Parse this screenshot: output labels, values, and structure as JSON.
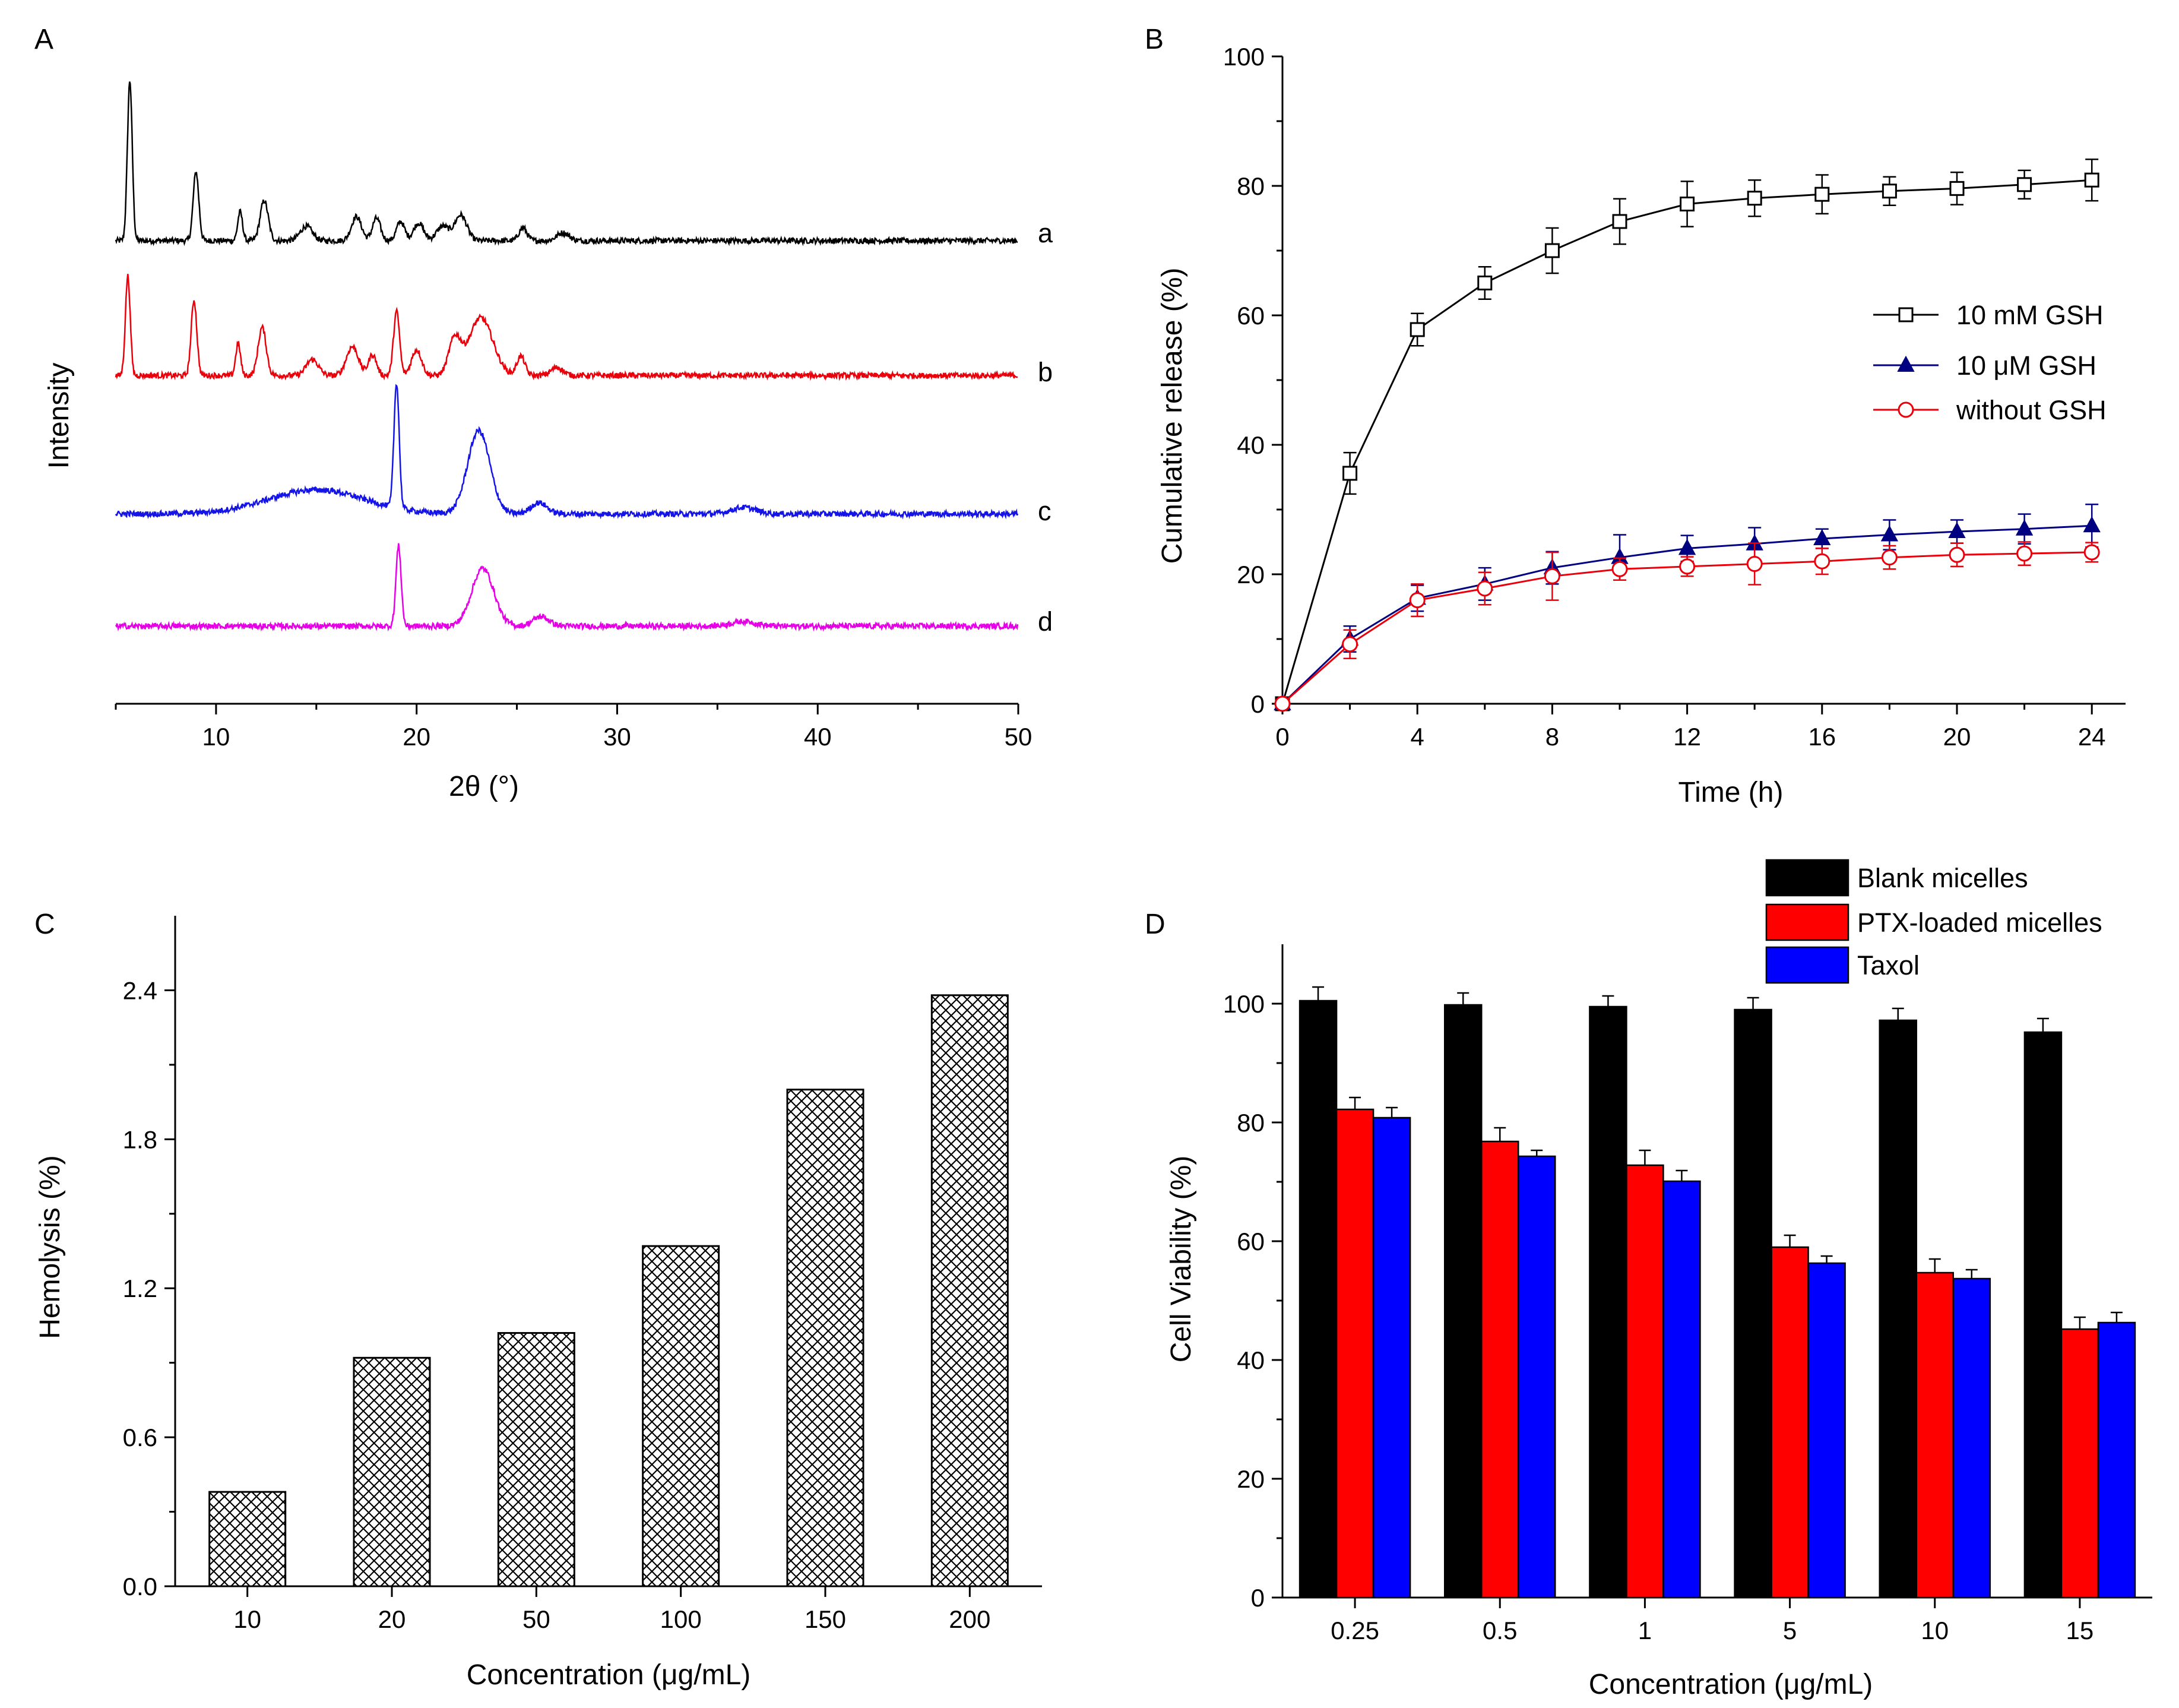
{
  "chart_data": [
    {
      "panel": "A",
      "type": "line",
      "title": "",
      "xlabel": "2θ (°)",
      "ylabel": "Intensity",
      "xlim": [
        5,
        50
      ],
      "xticks": [
        10,
        20,
        30,
        40,
        50
      ],
      "series": [
        {
          "name": "a",
          "color": "#000000",
          "baseline": 0.0,
          "peaks": [
            [
              5.7,
              1.0,
              0.12
            ],
            [
              9.0,
              0.43,
              0.14
            ],
            [
              11.2,
              0.18,
              0.12
            ],
            [
              12.4,
              0.25,
              0.2
            ],
            [
              14.5,
              0.09,
              0.3
            ],
            [
              17.0,
              0.15,
              0.25
            ],
            [
              18.0,
              0.14,
              0.2
            ],
            [
              19.2,
              0.12,
              0.2
            ],
            [
              20.1,
              0.11,
              0.25
            ],
            [
              21.3,
              0.09,
              0.3
            ],
            [
              22.2,
              0.16,
              0.3
            ],
            [
              25.3,
              0.08,
              0.2
            ],
            [
              27.3,
              0.05,
              0.3
            ]
          ]
        },
        {
          "name": "b",
          "color": "#e8000b",
          "baseline": 0.0,
          "peaks": [
            [
              5.6,
              0.62,
              0.12
            ],
            [
              8.9,
              0.47,
              0.14
            ],
            [
              11.1,
              0.2,
              0.12
            ],
            [
              12.3,
              0.3,
              0.2
            ],
            [
              14.8,
              0.1,
              0.3
            ],
            [
              16.8,
              0.18,
              0.3
            ],
            [
              17.8,
              0.13,
              0.2
            ],
            [
              19.0,
              0.4,
              0.15
            ],
            [
              20.0,
              0.16,
              0.25
            ],
            [
              21.9,
              0.22,
              0.3
            ],
            [
              23.2,
              0.36,
              0.6
            ],
            [
              25.2,
              0.12,
              0.2
            ],
            [
              27.0,
              0.05,
              0.3
            ]
          ]
        },
        {
          "name": "c",
          "color": "#1414e6",
          "baseline": 0.0,
          "peaks": [
            [
              15.0,
              0.15,
              2.4
            ],
            [
              19.0,
              0.78,
              0.13
            ],
            [
              23.1,
              0.52,
              0.55
            ],
            [
              26.1,
              0.07,
              0.4
            ],
            [
              36.3,
              0.04,
              0.6
            ]
          ]
        },
        {
          "name": "d",
          "color": "#e600e6",
          "baseline": 0.0,
          "peaks": [
            [
              19.1,
              0.5,
              0.13
            ],
            [
              23.3,
              0.36,
              0.55
            ],
            [
              26.2,
              0.06,
              0.4
            ],
            [
              36.3,
              0.03,
              0.6
            ]
          ]
        }
      ]
    },
    {
      "panel": "B",
      "type": "line",
      "title": "",
      "xlabel": "Time (h)",
      "ylabel": "Cumulative release (%)",
      "xlim": [
        0,
        25
      ],
      "ylim": [
        0,
        100
      ],
      "xticks": [
        0,
        4,
        8,
        12,
        16,
        20,
        24
      ],
      "yticks": [
        0,
        20,
        40,
        60,
        80,
        100
      ],
      "x": [
        0,
        2,
        4,
        6,
        8,
        10,
        12,
        14,
        16,
        18,
        20,
        22,
        24
      ],
      "series": [
        {
          "name": "10 mM GSH",
          "color": "#000000",
          "marker": "square-open",
          "values": [
            0,
            35.6,
            57.8,
            65.0,
            70.0,
            74.5,
            77.2,
            78.1,
            78.7,
            79.2,
            79.6,
            80.2,
            80.9
          ],
          "errors": [
            0,
            3.2,
            2.5,
            2.5,
            3.5,
            3.5,
            3.5,
            2.8,
            3.0,
            2.2,
            2.5,
            2.2,
            3.2
          ]
        },
        {
          "name": "10 μM GSH",
          "color": "#000080",
          "marker": "triangle-filled",
          "values": [
            0,
            10.0,
            16.3,
            18.5,
            21.0,
            22.6,
            24.0,
            24.7,
            25.5,
            26.1,
            26.6,
            27.0,
            27.5
          ],
          "errors": [
            0,
            2.0,
            2.0,
            2.5,
            2.5,
            3.5,
            2.0,
            2.5,
            1.5,
            2.3,
            1.8,
            2.3,
            3.3
          ]
        },
        {
          "name": "without GSH",
          "color": "#e8000b",
          "marker": "circle-open",
          "values": [
            0,
            9.2,
            16.0,
            17.8,
            19.7,
            20.8,
            21.2,
            21.6,
            22.0,
            22.6,
            23.0,
            23.2,
            23.4
          ],
          "errors": [
            0,
            2.2,
            2.5,
            2.5,
            3.7,
            1.7,
            1.5,
            3.2,
            2.0,
            1.8,
            1.8,
            1.8,
            1.5
          ]
        }
      ],
      "legend_position": "center-right"
    },
    {
      "panel": "C",
      "type": "bar",
      "title": "",
      "xlabel": "Concentration (μg/mL)",
      "ylabel": "Hemolysis (%)",
      "ylim": [
        0,
        2.7
      ],
      "yticks": [
        "0.0",
        "0.6",
        "1.2",
        "1.8",
        "2.4"
      ],
      "categories": [
        "10",
        "20",
        "50",
        "100",
        "150",
        "200"
      ],
      "values": [
        0.38,
        0.92,
        1.02,
        1.37,
        2.0,
        2.38
      ],
      "fill": "crosshatch"
    },
    {
      "panel": "D",
      "type": "bar",
      "title": "",
      "xlabel": "Concentration (μg/mL)",
      "ylabel": "Cell Viability (%)",
      "ylim": [
        0,
        110
      ],
      "yticks": [
        0,
        20,
        40,
        60,
        80,
        100
      ],
      "categories": [
        "0.25",
        "0.5",
        "1",
        "5",
        "10",
        "15"
      ],
      "series": [
        {
          "name": "Blank micelles",
          "color": "#000000",
          "values": [
            100.5,
            99.8,
            99.5,
            99.0,
            97.2,
            95.2
          ],
          "errors": [
            2.3,
            2.0,
            1.8,
            2.0,
            2.0,
            2.3
          ]
        },
        {
          "name": "PTX-loaded micelles",
          "color": "#ff0000",
          "values": [
            82.2,
            76.8,
            72.8,
            59.0,
            54.7,
            45.2
          ],
          "errors": [
            2.0,
            2.3,
            2.5,
            2.0,
            2.3,
            2.0
          ]
        },
        {
          "name": "Taxol",
          "color": "#0000ff",
          "values": [
            80.8,
            74.3,
            70.1,
            56.3,
            53.7,
            46.3
          ],
          "errors": [
            1.7,
            1.0,
            1.8,
            1.2,
            1.5,
            1.7
          ]
        }
      ],
      "legend_position": "top-right"
    }
  ],
  "labels": {
    "panelA": "A",
    "panelB": "B",
    "panelC": "C",
    "panelD": "D",
    "traceA": "a",
    "traceB": "b",
    "traceC": "c",
    "traceD": "d"
  }
}
